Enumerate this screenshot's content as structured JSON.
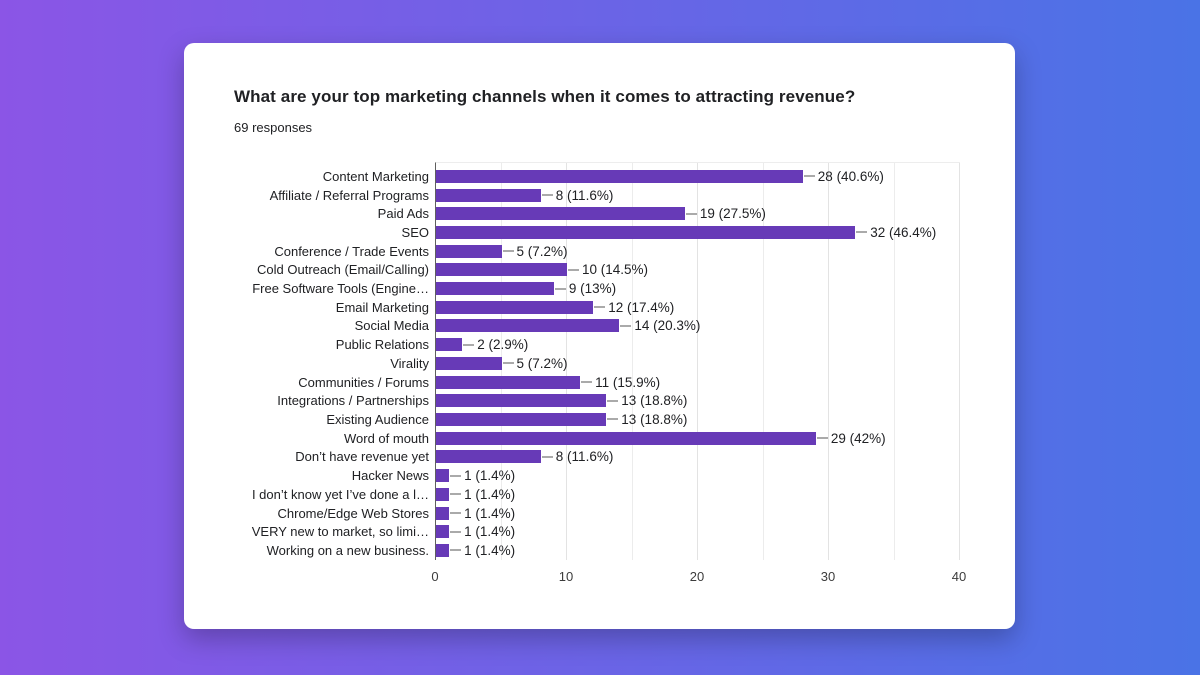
{
  "page": {
    "background_gradient": [
      "#8b55e6",
      "#4a73e6"
    ]
  },
  "card": {
    "title": "What are your top marketing channels when it comes to attracting revenue?",
    "responses_label": "69 responses"
  },
  "chart_data": {
    "type": "bar",
    "orientation": "horizontal",
    "title": "What are your top marketing channels when it comes to attracting revenue?",
    "subtitle": "69 responses",
    "bar_color": "#673ab7",
    "grid": true,
    "legend": "none",
    "xlim": [
      0,
      40
    ],
    "x_major_ticks": [
      0,
      10,
      20,
      30,
      40
    ],
    "x_gridline_step": 5,
    "categories": [
      "Content Marketing",
      "Affiliate / Referral Programs",
      "Paid Ads",
      "SEO",
      "Conference / Trade Events",
      "Cold Outreach (Email/Calling)",
      "Free Software Tools (Engine…",
      "Email Marketing",
      "Social Media",
      "Public Relations",
      "Virality",
      "Communities / Forums",
      "Integrations / Partnerships",
      "Existing Audience",
      "Word of mouth",
      "Don’t have revenue yet",
      "Hacker News",
      "I don’t know yet I’ve done a l…",
      "Chrome/Edge Web Stores",
      "VERY new to market, so limi…",
      "Working on a new business."
    ],
    "values": [
      28,
      8,
      19,
      32,
      5,
      10,
      9,
      12,
      14,
      2,
      5,
      11,
      13,
      13,
      29,
      8,
      1,
      1,
      1,
      1,
      1
    ],
    "value_labels": [
      "28 (40.6%)",
      "8 (11.6%)",
      "19 (27.5%)",
      "32 (46.4%)",
      "5 (7.2%)",
      "10 (14.5%)",
      "9 (13%)",
      "12 (17.4%)",
      "14 (20.3%)",
      "2 (2.9%)",
      "5 (7.2%)",
      "11 (15.9%)",
      "13 (18.8%)",
      "13 (18.8%)",
      "29 (42%)",
      "8 (11.6%)",
      "1 (1.4%)",
      "1 (1.4%)",
      "1 (1.4%)",
      "1 (1.4%)",
      "1 (1.4%)"
    ]
  }
}
